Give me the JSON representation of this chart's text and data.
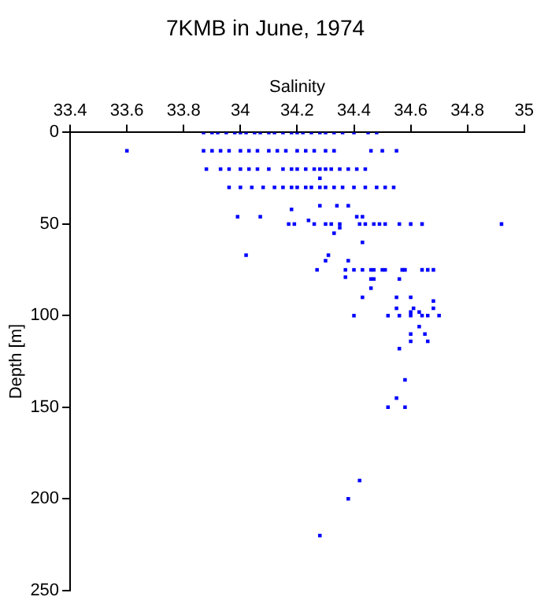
{
  "chart_data": {
    "type": "scatter",
    "title": "7KMB in June, 1974",
    "xlabel": "Salinity",
    "ylabel": "Depth [m]",
    "x": [
      33.87,
      33.9,
      33.92,
      33.95,
      33.98,
      34.0,
      34.02,
      34.05,
      34.07,
      34.1,
      34.12,
      34.15,
      34.18,
      34.2,
      34.22,
      34.25,
      34.28,
      34.3,
      34.33,
      34.36,
      34.4,
      34.45,
      34.48,
      33.6,
      33.87,
      33.9,
      33.93,
      33.96,
      34.0,
      34.03,
      34.06,
      34.1,
      34.13,
      34.16,
      34.2,
      34.23,
      34.26,
      34.3,
      34.33,
      34.46,
      34.5,
      34.55,
      33.88,
      33.93,
      33.96,
      34.0,
      34.03,
      34.06,
      34.1,
      34.15,
      34.18,
      34.2,
      34.23,
      34.26,
      34.28,
      34.3,
      34.32,
      34.35,
      34.38,
      34.41,
      34.44,
      34.28,
      33.96,
      34.0,
      34.04,
      34.08,
      34.12,
      34.15,
      34.18,
      34.2,
      34.23,
      34.25,
      34.28,
      34.3,
      34.33,
      34.36,
      34.4,
      34.44,
      34.48,
      34.51,
      34.54,
      34.28,
      34.34,
      34.38,
      34.18,
      33.99,
      34.07,
      34.41,
      34.43,
      34.24,
      34.17,
      34.19,
      34.26,
      34.3,
      34.32,
      34.35,
      34.42,
      34.44,
      34.47,
      34.49,
      34.51,
      34.56,
      34.6,
      34.64,
      34.92,
      34.35,
      34.33,
      34.43,
      34.02,
      34.31,
      34.3,
      34.38,
      34.27,
      34.37,
      34.4,
      34.43,
      34.46,
      34.47,
      34.5,
      34.51,
      34.57,
      34.58,
      34.64,
      34.66,
      34.68,
      34.37,
      34.46,
      34.47,
      34.56,
      34.46,
      34.43,
      34.55,
      34.6,
      34.68,
      34.55,
      34.61,
      34.68,
      34.6,
      34.63,
      34.4,
      34.52,
      34.56,
      34.6,
      34.64,
      34.66,
      34.7,
      34.63,
      34.6,
      34.65,
      34.6,
      34.66,
      34.56,
      34.58,
      34.55,
      34.52,
      34.58,
      34.42,
      34.38,
      34.28
    ],
    "values": [
      0,
      0,
      0,
      0,
      0,
      0,
      0,
      0,
      0,
      0,
      0,
      0,
      0,
      0,
      0,
      0,
      0,
      0,
      0,
      0,
      0,
      0,
      0,
      10,
      10,
      10,
      10,
      10,
      10,
      10,
      10,
      10,
      10,
      10,
      10,
      10,
      10,
      10,
      10,
      10,
      10,
      10,
      20,
      20,
      20,
      20,
      20,
      20,
      20,
      20,
      20,
      20,
      20,
      20,
      20,
      20,
      20,
      20,
      20,
      20,
      20,
      25,
      30,
      30,
      30,
      30,
      30,
      30,
      30,
      30,
      30,
      30,
      30,
      30,
      30,
      30,
      30,
      30,
      30,
      30,
      30,
      40,
      40,
      40,
      42,
      46,
      46,
      46,
      46,
      48,
      50,
      50,
      50,
      50,
      50,
      50,
      50,
      50,
      50,
      50,
      50,
      50,
      50,
      50,
      50,
      52,
      55,
      60,
      67,
      67,
      70,
      70,
      75,
      75,
      75,
      75,
      75,
      75,
      75,
      75,
      75,
      75,
      75,
      75,
      75,
      79,
      80,
      80,
      80,
      85,
      90,
      90,
      90,
      92,
      96,
      96,
      96,
      98,
      98,
      100,
      100,
      100,
      100,
      100,
      100,
      100,
      106,
      110,
      110,
      114,
      114,
      118,
      135,
      145,
      150,
      150,
      190,
      200,
      220
    ],
    "color": "#0000ff",
    "marker": "square",
    "xlim": [
      33.4,
      35
    ],
    "xticks": [
      33.4,
      33.6,
      33.8,
      34,
      34.2,
      34.4,
      34.6,
      34.8,
      35
    ],
    "ylim": [
      250,
      0
    ],
    "yticks": [
      0,
      50,
      100,
      150,
      200,
      250
    ],
    "grid": false,
    "legend": false
  }
}
